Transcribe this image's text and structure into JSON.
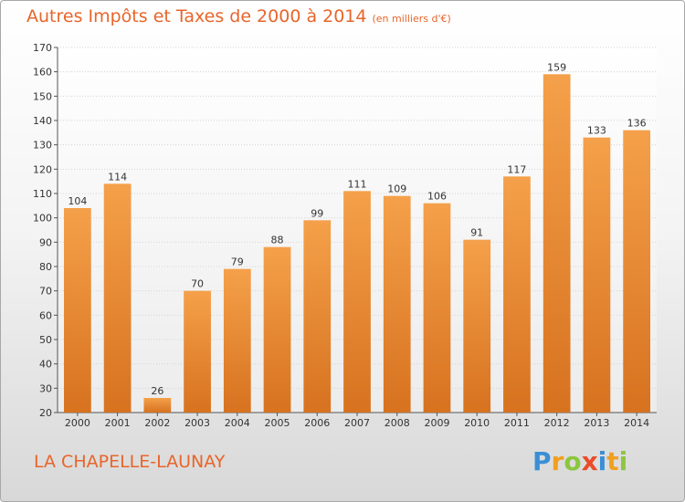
{
  "chart_data": {
    "type": "bar",
    "title": "Autres Impôts et Taxes de 2000 à 2014",
    "subtitle": "(en milliers d'€)",
    "categories": [
      "2000",
      "2001",
      "2002",
      "2003",
      "2004",
      "2005",
      "2006",
      "2007",
      "2008",
      "2009",
      "2010",
      "2011",
      "2012",
      "2013",
      "2014"
    ],
    "values": [
      104,
      114,
      26,
      70,
      79,
      88,
      99,
      111,
      109,
      106,
      91,
      117,
      159,
      133,
      136
    ],
    "ylim": [
      20,
      170
    ],
    "yticks": [
      20,
      30,
      40,
      50,
      60,
      70,
      80,
      90,
      100,
      110,
      120,
      130,
      140,
      150,
      160,
      170
    ],
    "grid": true,
    "bar_color_light": "#f5a04a",
    "bar_color_dark": "#d7721f",
    "text_color": "#e8652a"
  },
  "footer": {
    "commune": "LA CHAPELLE-LAUNAY"
  },
  "logo": {
    "letters": [
      "P",
      "r",
      "o",
      "x",
      "i",
      "t",
      "i"
    ],
    "colors": [
      "#3a8fd6",
      "#f0a020",
      "#8cc63f",
      "#e94c2a",
      "#3a8fd6",
      "#f0a020",
      "#8cc63f"
    ]
  }
}
